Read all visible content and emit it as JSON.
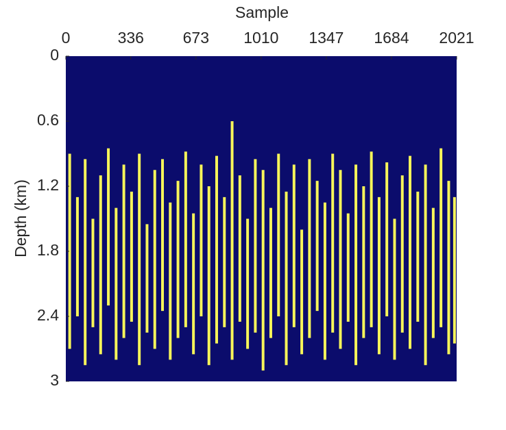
{
  "chart_data": {
    "type": "streaks",
    "xlabel": "Sample",
    "ylabel": "Depth (km)",
    "xlim": [
      0,
      2021
    ],
    "xticks": [
      0,
      336,
      673,
      1010,
      1347,
      1684,
      2021
    ],
    "ylim": [
      0,
      3
    ],
    "yticks": [
      0,
      0.6,
      1.2,
      1.8,
      2.4,
      3
    ],
    "y_reversed": true,
    "background_color": "#0b0c6c",
    "color": "#f7f55a",
    "x": [
      20,
      60,
      100,
      140,
      180,
      220,
      260,
      300,
      340,
      380,
      420,
      460,
      500,
      540,
      580,
      620,
      660,
      700,
      740,
      780,
      820,
      860,
      900,
      940,
      980,
      1020,
      1060,
      1100,
      1140,
      1180,
      1220,
      1260,
      1300,
      1340,
      1380,
      1420,
      1460,
      1500,
      1540,
      1580,
      1620,
      1660,
      1700,
      1740,
      1780,
      1820,
      1860,
      1900,
      1940,
      1980,
      2010
    ],
    "top": [
      0.9,
      1.3,
      0.95,
      1.5,
      1.1,
      0.85,
      1.4,
      1.0,
      1.25,
      0.9,
      1.55,
      1.05,
      0.95,
      1.35,
      1.15,
      0.88,
      1.45,
      1.0,
      1.2,
      0.92,
      1.3,
      0.6,
      1.1,
      1.5,
      0.95,
      1.05,
      1.4,
      0.9,
      1.25,
      1.0,
      1.6,
      0.95,
      1.15,
      1.35,
      0.9,
      1.05,
      1.45,
      1.0,
      1.2,
      0.88,
      1.3,
      0.98,
      1.5,
      1.1,
      0.92,
      1.25,
      1.0,
      1.4,
      0.85,
      1.15,
      1.3
    ],
    "bottom": [
      2.7,
      2.4,
      2.85,
      2.5,
      2.75,
      2.3,
      2.8,
      2.6,
      2.45,
      2.85,
      2.55,
      2.7,
      2.35,
      2.8,
      2.6,
      2.5,
      2.75,
      2.4,
      2.85,
      2.65,
      2.5,
      2.8,
      2.45,
      2.7,
      2.55,
      2.9,
      2.6,
      2.4,
      2.85,
      2.5,
      2.75,
      2.6,
      2.35,
      2.8,
      2.55,
      2.7,
      2.45,
      2.85,
      2.6,
      2.5,
      2.75,
      2.4,
      2.8,
      2.55,
      2.7,
      2.45,
      2.85,
      2.6,
      2.5,
      2.75,
      2.65
    ]
  }
}
